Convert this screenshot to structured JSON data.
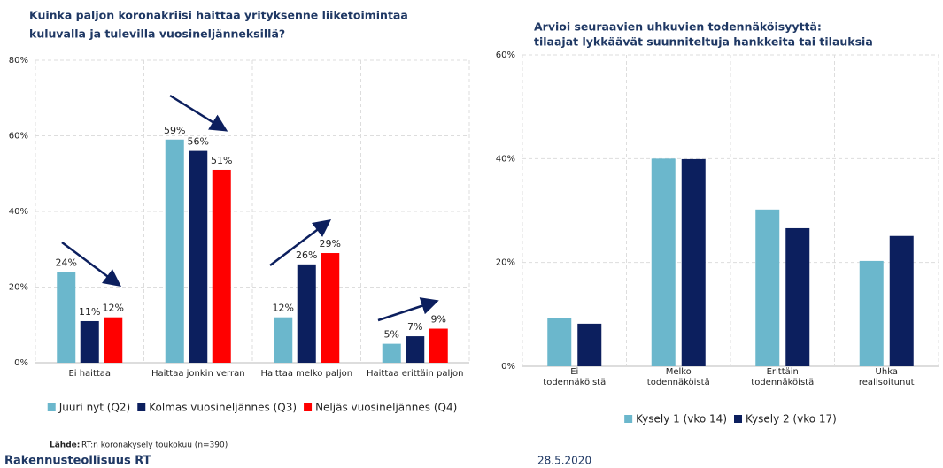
{
  "chart_data": [
    {
      "type": "bar",
      "title": [
        "Kuinka paljon koronakriisi haittaa yrityksenne liiketoimintaa",
        "kuluvalla ja tulevilla vuosineljänneksillä?"
      ],
      "categories": [
        "Ei haittaa",
        "Haittaa jonkin verran",
        "Haittaa melko paljon",
        "Haittaa erittäin paljon"
      ],
      "series": [
        {
          "name": "Juuri nyt (Q2)",
          "color": "#6bb7cc",
          "values": [
            24,
            59,
            12,
            5
          ],
          "value_labels": [
            "24%",
            "59%",
            "12%",
            "5%"
          ]
        },
        {
          "name": "Kolmas vuosineljännes (Q3)",
          "color": "#0c1f5e",
          "values": [
            11,
            56,
            26,
            7
          ],
          "value_labels": [
            "11%",
            "56%",
            "26%",
            "7%"
          ]
        },
        {
          "name": "Neljäs vuosineljännes (Q4)",
          "color": "#ff0000",
          "values": [
            12,
            51,
            29,
            9
          ],
          "value_labels": [
            "12%",
            "51%",
            "29%",
            "9%"
          ]
        }
      ],
      "ylim": [
        0,
        80
      ],
      "yticks": [
        {
          "value": 0,
          "label": "0%"
        },
        {
          "value": 20,
          "label": "20%"
        },
        {
          "value": 40,
          "label": "40%"
        },
        {
          "value": 60,
          "label": "60%"
        },
        {
          "value": 80,
          "label": "80%"
        }
      ],
      "grid": true,
      "legend": "bottom"
    },
    {
      "type": "bar",
      "title": [
        "Arvioi seuraavien uhkuvien todennäköisyyttä:",
        "tilaajat lykkäävät suunniteltuja hankkeita tai tilauksia"
      ],
      "categories": [
        "Ei todennäköistä",
        "Melko todennäköistä",
        "Erittäin todennäköistä",
        "Uhka realisoitunut"
      ],
      "series": [
        {
          "name": "Kysely 1 (vko 14)",
          "color": "#6bb7cc",
          "values": [
            9.3,
            40,
            30.2,
            20.3
          ]
        },
        {
          "name": "Kysely 2 (vko 17)",
          "color": "#0c1f5e",
          "values": [
            8.2,
            39.9,
            26.6,
            25.1
          ]
        }
      ],
      "ylim": [
        0,
        60
      ],
      "yticks": [
        {
          "value": 0,
          "label": "0%"
        },
        {
          "value": 20,
          "label": "20%"
        },
        {
          "value": 40,
          "label": "40%"
        },
        {
          "value": 60,
          "label": "60%"
        }
      ],
      "grid": true,
      "legend": "bottom"
    }
  ],
  "footer": {
    "source_label": "Lähde:",
    "source": "RT:n koronakysely toukokuu (n=390)",
    "organization": "Rakennusteollisuus RT",
    "date": "28.5.2020"
  }
}
